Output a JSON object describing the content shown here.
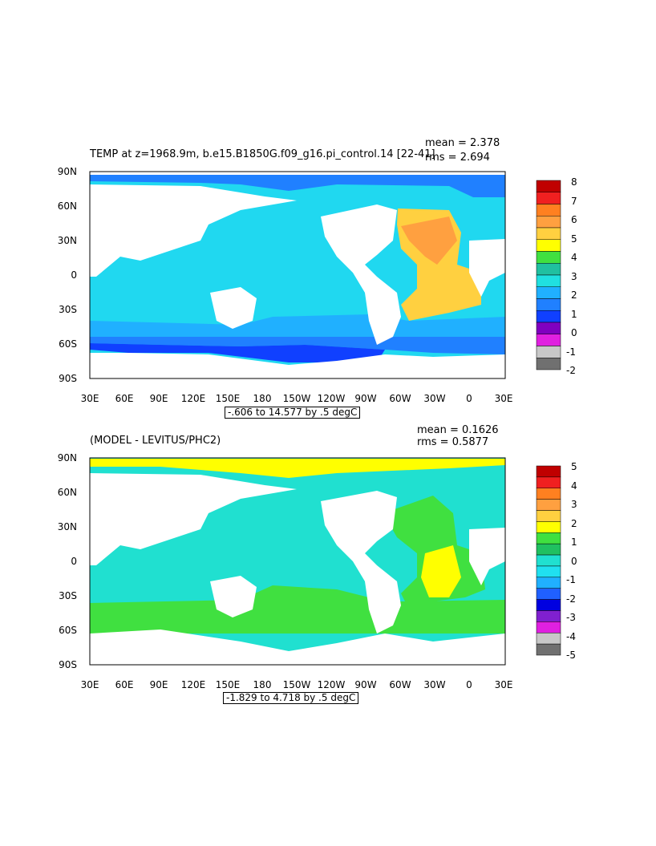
{
  "panels": [
    {
      "title": "TEMP at z=1968.9m, b.e15.B1850G.f09_g16.pi_control.14  [22-41]",
      "mean": "mean = 2.378",
      "rms": "rms = 2.694",
      "range_label": "-.606 to 14.577 by .5 degC",
      "colorbar_labels": [
        "8",
        "7",
        "6",
        "5",
        "4",
        "3",
        "2",
        "1",
        "0",
        "-1",
        "-2"
      ],
      "colorbar_colors": [
        "#c00000",
        "#f02020",
        "#ff8020",
        "#ffa040",
        "#ffd040",
        "#ffff00",
        "#40e040",
        "#20c0a0",
        "#20e0e0",
        "#20b0ff",
        "#2080ff",
        "#1040ff",
        "#8000c0",
        "#e020e0",
        "#c8c8c8",
        "#707070"
      ],
      "background_color": "#20d8f0",
      "land_color": "#ffffff"
    },
    {
      "title": "(MODEL - LEVITUS/PHC2)",
      "mean": "mean = 0.1626",
      "rms": "rms = 0.5877",
      "range_label": "-1.829 to 4.718 by .5 degC",
      "colorbar_labels": [
        "5",
        "4",
        "3",
        "2",
        "1",
        "0",
        "-1",
        "-2",
        "-3",
        "-4",
        "-5"
      ],
      "colorbar_colors": [
        "#c00000",
        "#f02020",
        "#ff8020",
        "#ffa040",
        "#ffd040",
        "#ffff00",
        "#40e040",
        "#20c060",
        "#20e0d0",
        "#20e0f0",
        "#20b0ff",
        "#2060ff",
        "#0000e0",
        "#8020d0",
        "#e020e0",
        "#c8c8c8",
        "#707070"
      ],
      "background_color": "#20e0d0",
      "land_color": "#ffffff"
    }
  ],
  "axes": {
    "lat_labels": [
      "90N",
      "60N",
      "30N",
      "0",
      "30S",
      "60S",
      "90S"
    ],
    "lon_labels": [
      "30E",
      "60E",
      "90E",
      "120E",
      "150E",
      "180",
      "150W",
      "120W",
      "90W",
      "60W",
      "30W",
      "0",
      "30E"
    ]
  }
}
